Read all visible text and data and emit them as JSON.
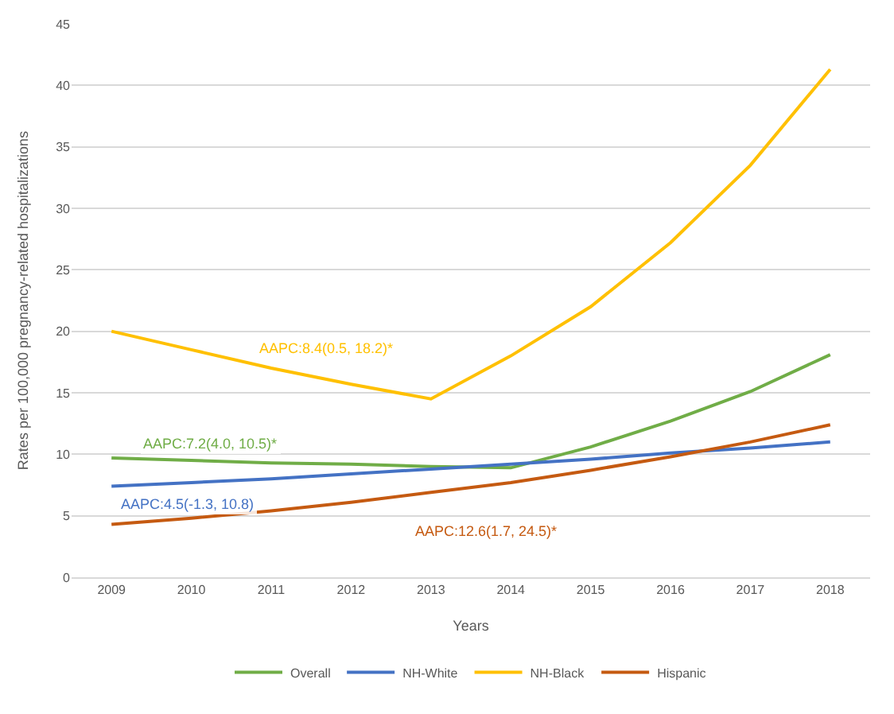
{
  "chart_data": {
    "type": "line",
    "xlabel": "Years",
    "ylabel": "Rates per 100,000 pregnancy-related hospitalizations",
    "categories": [
      "2009",
      "2010",
      "2011",
      "2012",
      "2013",
      "2014",
      "2015",
      "2016",
      "2017",
      "2018"
    ],
    "series": [
      {
        "name": "Overall",
        "color": "#70ad47",
        "values": [
          9.7,
          9.5,
          9.3,
          9.2,
          9.0,
          8.9,
          10.6,
          12.7,
          15.1,
          18.1
        ]
      },
      {
        "name": "NH-White",
        "color": "#4472c4",
        "values": [
          7.4,
          7.7,
          8.0,
          8.4,
          8.8,
          9.2,
          9.6,
          10.1,
          10.5,
          11.0
        ]
      },
      {
        "name": "NH-Black",
        "color": "#ffc000",
        "values": [
          20.0,
          18.5,
          17.0,
          15.7,
          14.5,
          18.0,
          22.0,
          27.2,
          33.5,
          41.3
        ]
      },
      {
        "name": "Hispanic",
        "color": "#c55a11",
        "values": [
          4.3,
          4.8,
          5.4,
          6.1,
          6.9,
          7.7,
          8.7,
          9.8,
          11.0,
          12.4
        ]
      }
    ],
    "annotations": [
      "AAPC:7.2(4.0, 10.5)*",
      "AAPC:4.5(-1.3, 10.8)",
      "AAPC:8.4(0.5, 18.2)*",
      "AAPC:12.6(1.7, 24.5)*"
    ],
    "ylim": [
      0,
      45
    ],
    "yticks": [
      0,
      5,
      10,
      15,
      20,
      25,
      30,
      35,
      40,
      45
    ],
    "grid": "y",
    "legend": "bottom",
    "marker": "none",
    "line_style": "solid"
  }
}
